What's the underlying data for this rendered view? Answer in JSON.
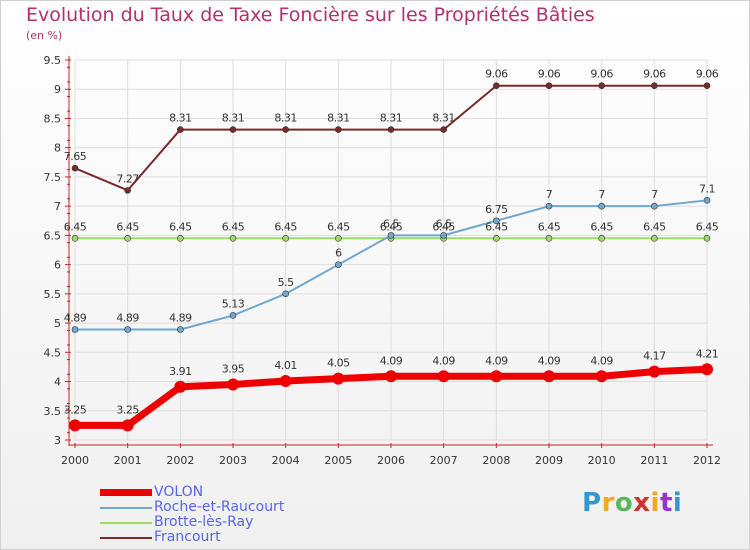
{
  "header": {
    "title": "Evolution du Taux de Taxe Foncière sur les Propriétés Bâties",
    "unit": "(en %)"
  },
  "logo": {
    "text": "Proxiti",
    "colors": [
      "#3399cc",
      "#f5a623",
      "#5cb85c",
      "#cc3333",
      "#f5a623",
      "#9933cc",
      "#3399cc"
    ]
  },
  "chart_data": {
    "type": "line",
    "title": "Evolution du Taux de Taxe Foncière sur les Propriétés Bâties",
    "ylabel": "(en %)",
    "xlabel": "",
    "categories": [
      "2000",
      "2001",
      "2002",
      "2003",
      "2004",
      "2005",
      "2006",
      "2007",
      "2008",
      "2009",
      "2010",
      "2011",
      "2012"
    ],
    "ylim": [
      3,
      9.5
    ],
    "yticks": [
      "3",
      "3.5",
      "4",
      "4.5",
      "5",
      "5.5",
      "6",
      "6.5",
      "7",
      "7.5",
      "8",
      "8.5",
      "9",
      "9.5"
    ],
    "grid": true,
    "legend_position": "bottom-left",
    "series": [
      {
        "name": "VOLON",
        "color": "#ee0000",
        "emphasis": true,
        "values": [
          3.25,
          3.25,
          3.91,
          3.95,
          4.01,
          4.05,
          4.09,
          4.09,
          4.09,
          4.09,
          4.09,
          4.17,
          4.21
        ],
        "labels": [
          "3.25",
          "3.25",
          "3.91",
          "3.95",
          "4.01",
          "4.05",
          "4.09",
          "4.09",
          "4.09",
          "4.09",
          "4.09",
          "4.17",
          "4.21"
        ]
      },
      {
        "name": "Roche-et-Raucourt",
        "color": "#70a8d0",
        "values": [
          4.89,
          4.89,
          4.89,
          5.13,
          5.5,
          6.0,
          6.5,
          6.5,
          6.75,
          7.0,
          7.0,
          7.0,
          7.1
        ],
        "labels": [
          "4.89",
          "4.89",
          "4.89",
          "5.13",
          "5.5",
          "6",
          "6.5",
          "6.5",
          "6.75",
          "7",
          "7",
          "7",
          "7.1"
        ]
      },
      {
        "name": "Brotte-lès-Ray",
        "color": "#99dd66",
        "values": [
          6.45,
          6.45,
          6.45,
          6.45,
          6.45,
          6.45,
          6.45,
          6.45,
          6.45,
          6.45,
          6.45,
          6.45,
          6.45
        ],
        "labels": [
          "6.45",
          "6.45",
          "6.45",
          "6.45",
          "6.45",
          "6.45",
          "6.45",
          "6.45",
          "6.45",
          "6.45",
          "6.45",
          "6.45",
          "6.45"
        ]
      },
      {
        "name": "Francourt",
        "color": "#7a2a2a",
        "values": [
          7.65,
          7.27,
          8.31,
          8.31,
          8.31,
          8.31,
          8.31,
          8.31,
          9.06,
          9.06,
          9.06,
          9.06,
          9.06
        ],
        "labels": [
          "7.65",
          "7.27",
          "8.31",
          "8.31",
          "8.31",
          "8.31",
          "8.31",
          "8.31",
          "9.06",
          "9.06",
          "9.06",
          "9.06",
          "9.06"
        ]
      }
    ]
  }
}
